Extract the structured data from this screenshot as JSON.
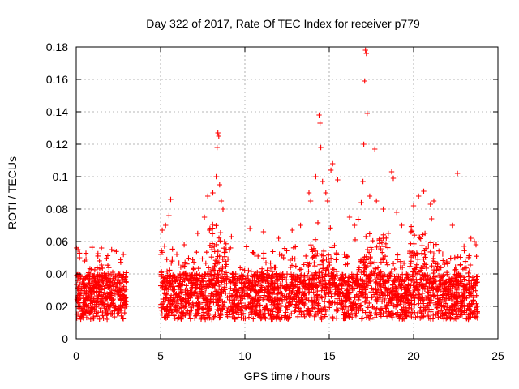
{
  "chart_data": {
    "type": "scatter",
    "title": "Day 322 of 2017, Rate Of TEC Index for receiver p779",
    "xlabel": "GPS time / hours",
    "ylabel": "ROTI / TECUs",
    "xlim": [
      0,
      25
    ],
    "ylim": [
      0,
      0.18
    ],
    "xticks": [
      0,
      5,
      10,
      15,
      20,
      25
    ],
    "yticks": [
      0,
      0.02,
      0.04,
      0.06,
      0.08,
      0.1,
      0.12,
      0.14,
      0.16,
      0.18
    ],
    "xtick_labels": [
      "0",
      "5",
      "10",
      "15",
      "20",
      "25"
    ],
    "ytick_labels": [
      "0",
      "0.02",
      "0.04",
      "0.06",
      "0.08",
      "0.1",
      "0.12",
      "0.14",
      "0.16",
      "0.18"
    ],
    "grid": true,
    "marker": "+",
    "color": "#ff0000",
    "data_gap": [
      3.0,
      5.0
    ],
    "series": [
      {
        "points": [
          [
            0.1,
            0.055
          ],
          [
            0.2,
            0.05
          ],
          [
            0.5,
            0.048
          ],
          [
            1.5,
            0.056
          ],
          [
            2.1,
            0.055
          ],
          [
            2.8,
            0.052
          ],
          [
            5.1,
            0.067
          ],
          [
            5.3,
            0.07
          ],
          [
            5.6,
            0.086
          ],
          [
            5.5,
            0.076
          ],
          [
            6.4,
            0.058
          ],
          [
            7.2,
            0.065
          ],
          [
            7.6,
            0.075
          ],
          [
            7.8,
            0.088
          ],
          [
            8.1,
            0.09
          ],
          [
            8.3,
            0.1
          ],
          [
            8.35,
            0.118
          ],
          [
            8.4,
            0.127
          ],
          [
            8.45,
            0.125
          ],
          [
            8.5,
            0.095
          ],
          [
            8.6,
            0.085
          ],
          [
            8.7,
            0.08
          ],
          [
            9.2,
            0.063
          ],
          [
            10.3,
            0.068
          ],
          [
            11.1,
            0.066
          ],
          [
            12.0,
            0.062
          ],
          [
            12.8,
            0.067
          ],
          [
            13.3,
            0.07
          ],
          [
            13.8,
            0.09
          ],
          [
            13.9,
            0.085
          ],
          [
            14.2,
            0.1
          ],
          [
            14.4,
            0.138
          ],
          [
            14.45,
            0.133
          ],
          [
            14.5,
            0.118
          ],
          [
            14.6,
            0.097
          ],
          [
            14.8,
            0.09
          ],
          [
            14.9,
            0.085
          ],
          [
            15.1,
            0.104
          ],
          [
            15.2,
            0.108
          ],
          [
            15.5,
            0.098
          ],
          [
            16.2,
            0.075
          ],
          [
            16.5,
            0.07
          ],
          [
            16.9,
            0.084
          ],
          [
            17.0,
            0.097
          ],
          [
            17.05,
            0.12
          ],
          [
            17.1,
            0.159
          ],
          [
            17.15,
            0.178
          ],
          [
            17.2,
            0.176
          ],
          [
            17.25,
            0.139
          ],
          [
            17.4,
            0.088
          ],
          [
            17.7,
            0.117
          ],
          [
            17.8,
            0.085
          ],
          [
            18.2,
            0.08
          ],
          [
            18.5,
            0.065
          ],
          [
            18.7,
            0.103
          ],
          [
            18.8,
            0.099
          ],
          [
            19.0,
            0.078
          ],
          [
            19.3,
            0.07
          ],
          [
            20.0,
            0.082
          ],
          [
            20.3,
            0.088
          ],
          [
            20.6,
            0.091
          ],
          [
            21.0,
            0.083
          ],
          [
            21.2,
            0.085
          ],
          [
            22.3,
            0.07
          ],
          [
            22.6,
            0.102
          ],
          [
            23.4,
            0.062
          ],
          [
            23.6,
            0.06
          ],
          [
            23.7,
            0.058
          ]
        ]
      }
    ]
  }
}
